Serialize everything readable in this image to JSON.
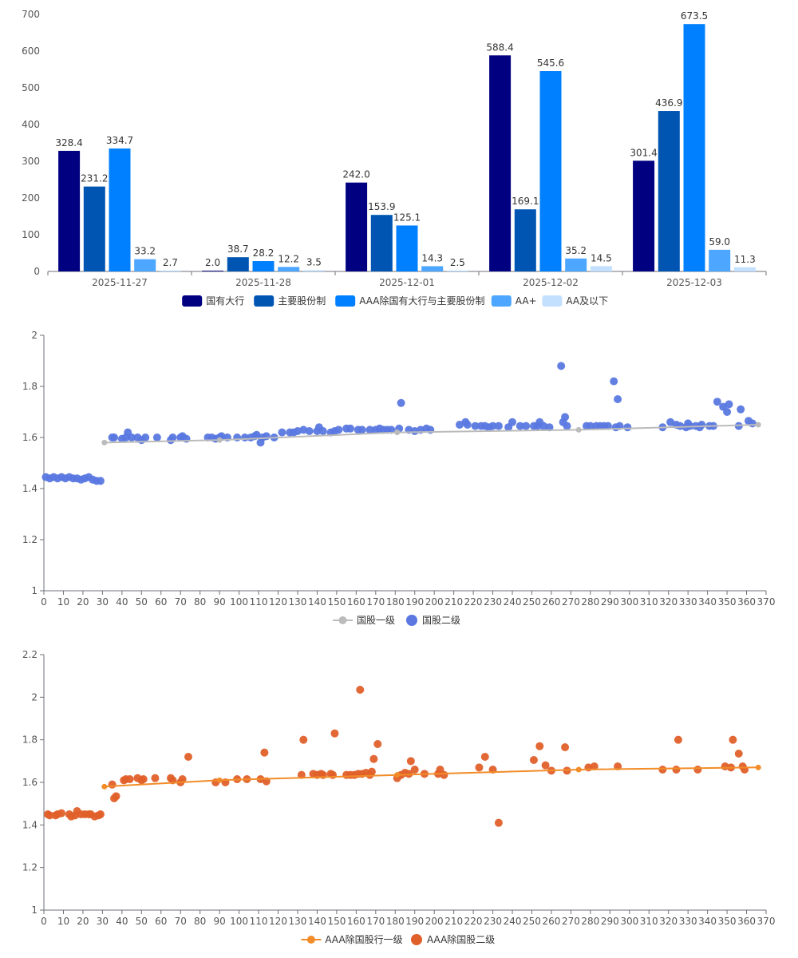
{
  "chart_data": [
    {
      "type": "bar",
      "categories": [
        "2025-11-27",
        "2025-11-28",
        "2025-12-01",
        "2025-12-02",
        "2025-12-03"
      ],
      "ylim": [
        0,
        700
      ],
      "yticks": [
        0,
        100,
        200,
        300,
        400,
        500,
        600,
        700
      ],
      "legend_position": "bottom",
      "series": [
        {
          "name": "国有大行",
          "color": "#000080",
          "values": [
            328.4,
            2.0,
            242.0,
            588.4,
            301.4
          ]
        },
        {
          "name": "主要股份制",
          "color": "#0055b3",
          "values": [
            231.2,
            38.7,
            153.9,
            169.1,
            436.9
          ]
        },
        {
          "name": "AAA除国有大行与主要股份制",
          "color": "#0080ff",
          "values": [
            334.7,
            28.2,
            125.1,
            545.6,
            673.5
          ]
        },
        {
          "name": "AA+",
          "color": "#4da6ff",
          "values": [
            33.2,
            12.2,
            14.3,
            35.2,
            59.0
          ]
        },
        {
          "name": "AA及以下",
          "color": "#c4e0ff",
          "values": [
            2.7,
            3.5,
            2.5,
            14.5,
            11.3
          ]
        }
      ]
    },
    {
      "type": "scatter",
      "xlim": [
        0,
        370
      ],
      "ylim": [
        1,
        2
      ],
      "yticks": [
        1,
        1.2,
        1.4,
        1.6,
        1.8,
        2
      ],
      "xticks": [
        0,
        10,
        20,
        30,
        40,
        50,
        60,
        70,
        80,
        90,
        100,
        110,
        120,
        130,
        140,
        150,
        160,
        170,
        180,
        190,
        200,
        210,
        220,
        230,
        240,
        250,
        260,
        270,
        280,
        290,
        300,
        310,
        320,
        330,
        340,
        350,
        360,
        370
      ],
      "legend_position": "bottom",
      "line": {
        "name": "国股一级",
        "color": "#bbbbbb",
        "points": [
          [
            31,
            1.58
          ],
          [
            90,
            1.59
          ],
          [
            181,
            1.62
          ],
          [
            274,
            1.63
          ],
          [
            366,
            1.65
          ]
        ]
      },
      "scatter": {
        "name": "国股二级",
        "color": "#5a78e0",
        "points": [
          [
            1,
            1.445
          ],
          [
            3,
            1.44
          ],
          [
            5,
            1.445
          ],
          [
            7,
            1.44
          ],
          [
            9,
            1.445
          ],
          [
            11,
            1.44
          ],
          [
            13,
            1.445
          ],
          [
            15,
            1.44
          ],
          [
            17,
            1.44
          ],
          [
            19,
            1.435
          ],
          [
            21,
            1.44
          ],
          [
            23,
            1.445
          ],
          [
            25,
            1.435
          ],
          [
            27,
            1.43
          ],
          [
            29,
            1.43
          ],
          [
            35,
            1.6
          ],
          [
            36,
            1.6
          ],
          [
            40,
            1.595
          ],
          [
            42,
            1.6
          ],
          [
            43,
            1.62
          ],
          [
            45,
            1.6
          ],
          [
            48,
            1.6
          ],
          [
            50,
            1.59
          ],
          [
            52,
            1.6
          ],
          [
            58,
            1.6
          ],
          [
            65,
            1.59
          ],
          [
            66,
            1.6
          ],
          [
            70,
            1.6
          ],
          [
            71,
            1.605
          ],
          [
            73,
            1.595
          ],
          [
            84,
            1.6
          ],
          [
            86,
            1.6
          ],
          [
            88,
            1.595
          ],
          [
            90,
            1.6
          ],
          [
            91,
            1.605
          ],
          [
            94,
            1.6
          ],
          [
            99,
            1.6
          ],
          [
            103,
            1.6
          ],
          [
            106,
            1.6
          ],
          [
            108,
            1.605
          ],
          [
            109,
            1.61
          ],
          [
            111,
            1.58
          ],
          [
            112,
            1.6
          ],
          [
            114,
            1.605
          ],
          [
            118,
            1.6
          ],
          [
            122,
            1.62
          ],
          [
            126,
            1.62
          ],
          [
            128,
            1.62
          ],
          [
            130,
            1.625
          ],
          [
            133,
            1.63
          ],
          [
            136,
            1.625
          ],
          [
            140,
            1.625
          ],
          [
            141,
            1.64
          ],
          [
            143,
            1.625
          ],
          [
            147,
            1.62
          ],
          [
            149,
            1.625
          ],
          [
            151,
            1.63
          ],
          [
            155,
            1.635
          ],
          [
            157,
            1.635
          ],
          [
            161,
            1.63
          ],
          [
            163,
            1.63
          ],
          [
            167,
            1.63
          ],
          [
            170,
            1.63
          ],
          [
            172,
            1.635
          ],
          [
            174,
            1.63
          ],
          [
            176,
            1.63
          ],
          [
            178,
            1.63
          ],
          [
            182,
            1.635
          ],
          [
            183,
            1.735
          ],
          [
            187,
            1.63
          ],
          [
            190,
            1.625
          ],
          [
            193,
            1.63
          ],
          [
            196,
            1.635
          ],
          [
            198,
            1.63
          ],
          [
            213,
            1.65
          ],
          [
            216,
            1.66
          ],
          [
            217,
            1.65
          ],
          [
            221,
            1.645
          ],
          [
            224,
            1.645
          ],
          [
            226,
            1.645
          ],
          [
            228,
            1.64
          ],
          [
            230,
            1.645
          ],
          [
            233,
            1.645
          ],
          [
            238,
            1.64
          ],
          [
            240,
            1.66
          ],
          [
            244,
            1.645
          ],
          [
            247,
            1.645
          ],
          [
            251,
            1.645
          ],
          [
            253,
            1.645
          ],
          [
            254,
            1.66
          ],
          [
            256,
            1.645
          ],
          [
            259,
            1.64
          ],
          [
            265,
            1.88
          ],
          [
            266,
            1.66
          ],
          [
            267,
            1.68
          ],
          [
            268,
            1.645
          ],
          [
            278,
            1.645
          ],
          [
            280,
            1.645
          ],
          [
            283,
            1.645
          ],
          [
            285,
            1.645
          ],
          [
            287,
            1.645
          ],
          [
            289,
            1.645
          ],
          [
            292,
            1.82
          ],
          [
            294,
            1.75
          ],
          [
            293,
            1.64
          ],
          [
            295,
            1.645
          ],
          [
            299,
            1.64
          ],
          [
            317,
            1.64
          ],
          [
            321,
            1.66
          ],
          [
            324,
            1.65
          ],
          [
            326,
            1.645
          ],
          [
            329,
            1.64
          ],
          [
            330,
            1.655
          ],
          [
            331,
            1.645
          ],
          [
            334,
            1.645
          ],
          [
            336,
            1.64
          ],
          [
            337,
            1.65
          ],
          [
            341,
            1.645
          ],
          [
            343,
            1.645
          ],
          [
            345,
            1.74
          ],
          [
            348,
            1.72
          ],
          [
            350,
            1.7
          ],
          [
            351,
            1.73
          ],
          [
            356,
            1.645
          ],
          [
            357,
            1.71
          ],
          [
            361,
            1.665
          ],
          [
            363,
            1.655
          ]
        ]
      }
    },
    {
      "type": "scatter",
      "xlim": [
        0,
        370
      ],
      "ylim": [
        1,
        2.2
      ],
      "yticks": [
        1,
        1.2,
        1.4,
        1.6,
        1.8,
        2,
        2.2
      ],
      "xticks": [
        0,
        10,
        20,
        30,
        40,
        50,
        60,
        70,
        80,
        90,
        100,
        110,
        120,
        130,
        140,
        150,
        160,
        170,
        180,
        190,
        200,
        210,
        220,
        230,
        240,
        250,
        260,
        270,
        280,
        290,
        300,
        310,
        320,
        330,
        340,
        350,
        360,
        370
      ],
      "legend_position": "bottom",
      "line": {
        "name": "AAA除国股行一级",
        "color": "#f28c28",
        "points": [
          [
            31,
            1.58
          ],
          [
            90,
            1.61
          ],
          [
            181,
            1.635
          ],
          [
            274,
            1.66
          ],
          [
            366,
            1.67
          ]
        ]
      },
      "scatter": {
        "name": "AAA除国股二级",
        "color": "#e0602a",
        "points": [
          [
            2,
            1.45
          ],
          [
            3,
            1.445
          ],
          [
            6,
            1.445
          ],
          [
            7,
            1.45
          ],
          [
            9,
            1.455
          ],
          [
            13,
            1.45
          ],
          [
            14,
            1.44
          ],
          [
            16,
            1.445
          ],
          [
            17,
            1.465
          ],
          [
            19,
            1.45
          ],
          [
            21,
            1.45
          ],
          [
            23,
            1.45
          ],
          [
            24,
            1.45
          ],
          [
            26,
            1.44
          ],
          [
            28,
            1.445
          ],
          [
            29,
            1.45
          ],
          [
            35,
            1.59
          ],
          [
            36,
            1.525
          ],
          [
            37,
            1.535
          ],
          [
            41,
            1.61
          ],
          [
            42,
            1.615
          ],
          [
            44,
            1.615
          ],
          [
            48,
            1.62
          ],
          [
            50,
            1.61
          ],
          [
            51,
            1.615
          ],
          [
            57,
            1.62
          ],
          [
            65,
            1.62
          ],
          [
            66,
            1.61
          ],
          [
            70,
            1.6
          ],
          [
            71,
            1.615
          ],
          [
            74,
            1.72
          ],
          [
            88,
            1.6
          ],
          [
            93,
            1.6
          ],
          [
            99,
            1.615
          ],
          [
            104,
            1.615
          ],
          [
            111,
            1.615
          ],
          [
            113,
            1.74
          ],
          [
            114,
            1.605
          ],
          [
            132,
            1.635
          ],
          [
            133,
            1.8
          ],
          [
            138,
            1.64
          ],
          [
            140,
            1.635
          ],
          [
            142,
            1.64
          ],
          [
            143,
            1.635
          ],
          [
            147,
            1.64
          ],
          [
            148,
            1.635
          ],
          [
            149,
            1.83
          ],
          [
            155,
            1.635
          ],
          [
            157,
            1.635
          ],
          [
            159,
            1.635
          ],
          [
            161,
            1.64
          ],
          [
            162,
            2.035
          ],
          [
            163,
            1.64
          ],
          [
            165,
            1.645
          ],
          [
            167,
            1.635
          ],
          [
            168,
            1.65
          ],
          [
            169,
            1.71
          ],
          [
            171,
            1.78
          ],
          [
            181,
            1.62
          ],
          [
            183,
            1.635
          ],
          [
            185,
            1.645
          ],
          [
            187,
            1.64
          ],
          [
            188,
            1.7
          ],
          [
            190,
            1.66
          ],
          [
            195,
            1.64
          ],
          [
            202,
            1.64
          ],
          [
            203,
            1.66
          ],
          [
            205,
            1.635
          ],
          [
            223,
            1.67
          ],
          [
            226,
            1.72
          ],
          [
            230,
            1.66
          ],
          [
            233,
            1.41
          ],
          [
            251,
            1.705
          ],
          [
            254,
            1.77
          ],
          [
            257,
            1.68
          ],
          [
            260,
            1.655
          ],
          [
            267,
            1.765
          ],
          [
            268,
            1.655
          ],
          [
            279,
            1.67
          ],
          [
            282,
            1.675
          ],
          [
            294,
            1.675
          ],
          [
            317,
            1.66
          ],
          [
            324,
            1.66
          ],
          [
            325,
            1.8
          ],
          [
            335,
            1.66
          ],
          [
            349,
            1.675
          ],
          [
            352,
            1.67
          ],
          [
            353,
            1.8
          ],
          [
            356,
            1.735
          ],
          [
            358,
            1.675
          ],
          [
            359,
            1.66
          ]
        ]
      }
    }
  ]
}
